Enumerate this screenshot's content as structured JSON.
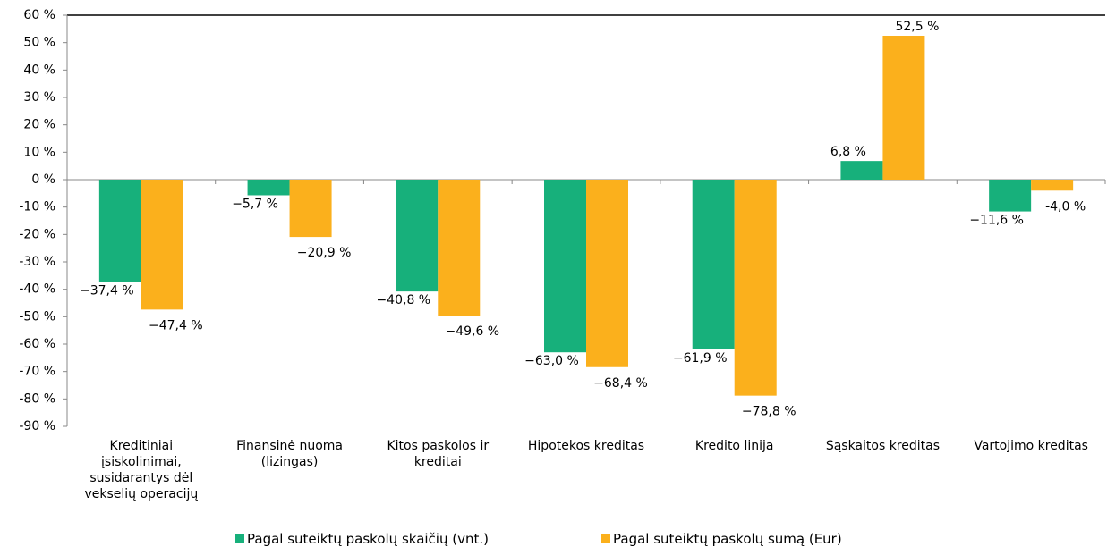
{
  "chart_data": {
    "type": "bar",
    "categories": [
      "Kreditiniai įsiskolinimai, susidarantys dėl vekselių operacijų",
      "Finansinė nuoma (lizingas)",
      "Kitos paskolos ir kreditai",
      "Hipotekos kreditas",
      "Kredito linija",
      "Sąskaitos kreditas",
      "Vartojimo kreditas"
    ],
    "series": [
      {
        "name": "Pagal suteiktų paskolų skaičių (vnt.)",
        "color": "#17b07b",
        "values": [
          -37.4,
          -5.7,
          -40.8,
          -63.0,
          -61.9,
          6.8,
          -11.6
        ],
        "value_labels": [
          "−37,4 %",
          "−5,7 %",
          "−40,8 %",
          "−63,0 %",
          "−61,9 %",
          "6,8 %",
          "−11,6 %"
        ]
      },
      {
        "name": "Pagal suteiktų paskolų sumą (Eur)",
        "color": "#fbb01c",
        "values": [
          -47.4,
          -20.9,
          -49.6,
          -68.4,
          -78.8,
          52.5,
          -4.0
        ],
        "value_labels": [
          "−47,4 %",
          "−20,9 %",
          "−49,6 %",
          "−68,4 %",
          "−78,8 %",
          "52,5 %",
          "-4,0 %"
        ]
      }
    ],
    "ylim": [
      -90,
      60
    ],
    "yticks": [
      {
        "value": 60,
        "label": "60 %"
      },
      {
        "value": 50,
        "label": "50 %"
      },
      {
        "value": 40,
        "label": "40 %"
      },
      {
        "value": 30,
        "label": "30 %"
      },
      {
        "value": 20,
        "label": "20 %"
      },
      {
        "value": 10,
        "label": "10 %"
      },
      {
        "value": 0,
        "label": "0 %"
      },
      {
        "value": -10,
        "label": "-10 %"
      },
      {
        "value": -20,
        "label": "-20 %"
      },
      {
        "value": -30,
        "label": "-30 %"
      },
      {
        "value": -40,
        "label": "-40 %"
      },
      {
        "value": -50,
        "label": "-50 %"
      },
      {
        "value": -60,
        "label": "-60 %"
      },
      {
        "value": -70,
        "label": "-70 %"
      },
      {
        "value": -80,
        "label": "-80 %"
      },
      {
        "value": -90,
        "label": "-90 %"
      }
    ],
    "legend": "bottom"
  }
}
